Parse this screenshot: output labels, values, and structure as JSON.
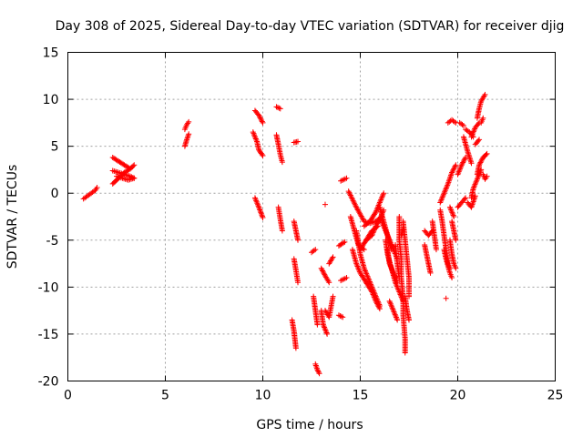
{
  "chart_data": {
    "type": "scatter",
    "title": "Day 308 of 2025, Sidereal Day-to-day VTEC variation (SDTVAR) for receiver djig",
    "xlabel": "GPS time / hours",
    "ylabel": "SDTVAR / TECUs",
    "xlim": [
      0,
      25
    ],
    "ylim": [
      -20,
      15
    ],
    "xticks": [
      "0",
      "5",
      "10",
      "15",
      "20",
      "25"
    ],
    "yticks": [
      "-20",
      "-15",
      "-10",
      "-5",
      "0",
      "5",
      "10",
      "15"
    ],
    "grid": true,
    "marker": "+",
    "color": "#ff0000",
    "tracks": [
      [
        [
          0.8,
          -0.6
        ],
        [
          1.0,
          -0.3
        ],
        [
          1.2,
          0.0
        ],
        [
          1.4,
          0.3
        ],
        [
          1.5,
          0.6
        ]
      ],
      [
        [
          2.3,
          1.0
        ],
        [
          2.6,
          1.6
        ],
        [
          2.9,
          2.2
        ],
        [
          3.2,
          2.6
        ],
        [
          3.4,
          3.0
        ]
      ],
      [
        [
          2.3,
          2.4
        ],
        [
          2.6,
          2.2
        ],
        [
          2.9,
          2.0
        ],
        [
          3.2,
          1.8
        ],
        [
          3.4,
          1.6
        ]
      ],
      [
        [
          2.3,
          3.8
        ],
        [
          2.6,
          3.4
        ],
        [
          2.9,
          3.0
        ],
        [
          3.2,
          2.6
        ]
      ],
      [
        [
          2.5,
          1.8
        ],
        [
          2.8,
          1.6
        ],
        [
          3.1,
          1.4
        ],
        [
          3.4,
          1.6
        ]
      ],
      [
        [
          6.0,
          5.0
        ],
        [
          6.1,
          5.7
        ],
        [
          6.2,
          6.3
        ]
      ],
      [
        [
          6.0,
          6.8
        ],
        [
          6.1,
          7.3
        ],
        [
          6.2,
          7.6
        ]
      ],
      [
        [
          9.6,
          8.8
        ],
        [
          9.8,
          8.3
        ],
        [
          10.0,
          7.5
        ]
      ],
      [
        [
          9.5,
          6.5
        ],
        [
          9.7,
          5.5
        ],
        [
          9.8,
          4.6
        ],
        [
          10.0,
          4.0
        ]
      ],
      [
        [
          9.6,
          -0.5
        ],
        [
          9.8,
          -1.5
        ],
        [
          10.0,
          -2.6
        ]
      ],
      [
        [
          10.7,
          9.2
        ],
        [
          10.9,
          9.0
        ]
      ],
      [
        [
          10.7,
          6.2
        ],
        [
          10.8,
          5.2
        ],
        [
          10.9,
          4.1
        ],
        [
          11.0,
          3.3
        ]
      ],
      [
        [
          10.8,
          -1.5
        ],
        [
          10.9,
          -2.8
        ],
        [
          11.0,
          -4.0
        ]
      ],
      [
        [
          11.6,
          5.4
        ],
        [
          11.8,
          5.5
        ]
      ],
      [
        [
          11.6,
          -3.0
        ],
        [
          11.7,
          -4.0
        ],
        [
          11.8,
          -5.0
        ]
      ],
      [
        [
          11.6,
          -7.0
        ],
        [
          11.7,
          -8.2
        ],
        [
          11.8,
          -9.5
        ]
      ],
      [
        [
          11.5,
          -13.5
        ],
        [
          11.6,
          -14.7
        ],
        [
          11.7,
          -16.5
        ]
      ],
      [
        [
          12.6,
          -11.0
        ],
        [
          12.7,
          -12.5
        ],
        [
          12.8,
          -14.0
        ]
      ],
      [
        [
          12.7,
          -18.2
        ],
        [
          12.8,
          -18.8
        ],
        [
          12.9,
          -19.2
        ]
      ],
      [
        [
          12.5,
          -6.3
        ],
        [
          12.7,
          -6.0
        ]
      ],
      [
        [
          13.0,
          -8.0
        ],
        [
          13.2,
          -8.8
        ],
        [
          13.4,
          -9.5
        ]
      ],
      [
        [
          13.0,
          -12.5
        ],
        [
          13.1,
          -14.0
        ],
        [
          13.3,
          -15.0
        ]
      ],
      [
        [
          13.2,
          -12.5
        ],
        [
          13.4,
          -13.2
        ],
        [
          13.6,
          -11.0
        ]
      ],
      [
        [
          13.4,
          -7.5
        ],
        [
          13.6,
          -6.8
        ]
      ],
      [
        [
          13.2,
          -1.2
        ]
      ],
      [
        [
          13.9,
          -13.0
        ],
        [
          14.1,
          -13.2
        ]
      ],
      [
        [
          14.0,
          1.3
        ],
        [
          14.3,
          1.6
        ]
      ],
      [
        [
          13.9,
          -5.6
        ],
        [
          14.2,
          -5.2
        ]
      ],
      [
        [
          14.0,
          -9.3
        ],
        [
          14.3,
          -9.0
        ]
      ],
      [
        [
          14.4,
          0.2
        ],
        [
          14.8,
          -1.5
        ],
        [
          15.2,
          -3.0
        ],
        [
          15.5,
          -3.2
        ],
        [
          15.8,
          -3.0
        ],
        [
          16.1,
          -2.5
        ]
      ],
      [
        [
          14.5,
          -2.5
        ],
        [
          14.7,
          -4.0
        ],
        [
          14.9,
          -5.5
        ],
        [
          15.2,
          -6.0
        ]
      ],
      [
        [
          14.6,
          -6.0
        ],
        [
          14.8,
          -7.5
        ],
        [
          15.0,
          -8.5
        ],
        [
          15.3,
          -9.5
        ],
        [
          15.6,
          -10.5
        ],
        [
          15.8,
          -11.5
        ],
        [
          16.0,
          -12.3
        ]
      ],
      [
        [
          14.8,
          -4.0
        ],
        [
          15.0,
          -6.5
        ],
        [
          15.2,
          -8.0
        ],
        [
          15.4,
          -9.0
        ],
        [
          15.6,
          -10.0
        ],
        [
          15.8,
          -11.0
        ],
        [
          16.0,
          -12.0
        ]
      ],
      [
        [
          15.2,
          -3.5
        ],
        [
          15.5,
          -3.0
        ],
        [
          15.8,
          -2.0
        ],
        [
          16.0,
          -1.0
        ],
        [
          16.2,
          0.0
        ]
      ],
      [
        [
          15.3,
          -5.0
        ],
        [
          15.6,
          -4.5
        ],
        [
          15.8,
          -3.5
        ],
        [
          16.0,
          -2.8
        ],
        [
          16.2,
          -1.8
        ]
      ],
      [
        [
          15.0,
          -6.0
        ],
        [
          15.3,
          -5.0
        ],
        [
          15.6,
          -4.0
        ],
        [
          15.9,
          -3.5
        ]
      ],
      [
        [
          16.0,
          -1.5
        ],
        [
          16.2,
          -3.0
        ],
        [
          16.4,
          -4.5
        ],
        [
          16.6,
          -6.0
        ]
      ],
      [
        [
          16.1,
          -3.0
        ],
        [
          16.3,
          -4.0
        ],
        [
          16.5,
          -5.0
        ],
        [
          16.7,
          -6.0
        ],
        [
          16.9,
          -7.0
        ]
      ],
      [
        [
          16.3,
          -5.0
        ],
        [
          16.4,
          -6.5
        ],
        [
          16.6,
          -8.0
        ],
        [
          16.8,
          -9.5
        ],
        [
          17.0,
          -10.5
        ],
        [
          17.2,
          -11.5
        ]
      ],
      [
        [
          16.4,
          -6.0
        ],
        [
          16.5,
          -7.5
        ],
        [
          16.7,
          -8.5
        ],
        [
          16.9,
          -9.5
        ]
      ],
      [
        [
          16.8,
          -5.5
        ],
        [
          16.9,
          -7.5
        ],
        [
          17.0,
          -9.0
        ]
      ],
      [
        [
          17.0,
          -2.5
        ],
        [
          17.0,
          -5.0
        ],
        [
          17.1,
          -7.0
        ],
        [
          17.1,
          -9.0
        ],
        [
          17.2,
          -11.0
        ],
        [
          17.2,
          -13.0
        ],
        [
          17.3,
          -15.5
        ],
        [
          17.3,
          -17.0
        ]
      ],
      [
        [
          17.2,
          -3.0
        ],
        [
          17.3,
          -5.0
        ],
        [
          17.4,
          -7.0
        ],
        [
          17.5,
          -9.0
        ],
        [
          17.5,
          -11.0
        ]
      ],
      [
        [
          16.5,
          -11.5
        ],
        [
          16.7,
          -12.5
        ],
        [
          16.9,
          -13.5
        ]
      ],
      [
        [
          17.3,
          -11.0
        ],
        [
          17.4,
          -12.5
        ],
        [
          17.5,
          -13.5
        ]
      ],
      [
        [
          17.1,
          -4.5
        ],
        [
          17.2,
          -3.8
        ]
      ],
      [
        [
          18.3,
          -5.5
        ],
        [
          18.4,
          -6.5
        ],
        [
          18.5,
          -7.5
        ],
        [
          18.6,
          -8.5
        ]
      ],
      [
        [
          18.7,
          -3.0
        ],
        [
          18.8,
          -4.5
        ],
        [
          18.9,
          -6.0
        ]
      ],
      [
        [
          18.3,
          -4.0
        ],
        [
          18.5,
          -4.5
        ],
        [
          18.7,
          -4.0
        ]
      ],
      [
        [
          19.1,
          -1.8
        ],
        [
          19.2,
          -3.0
        ],
        [
          19.3,
          -4.5
        ],
        [
          19.4,
          -6.0
        ],
        [
          19.5,
          -7.5
        ],
        [
          19.6,
          -8.0
        ]
      ],
      [
        [
          19.3,
          -6.0
        ],
        [
          19.4,
          -7.0
        ],
        [
          19.6,
          -8.5
        ],
        [
          19.7,
          -9.0
        ]
      ],
      [
        [
          19.6,
          -5.0
        ],
        [
          19.7,
          -6.5
        ],
        [
          19.8,
          -7.5
        ],
        [
          19.9,
          -8.0
        ]
      ],
      [
        [
          19.7,
          -3.0
        ],
        [
          19.8,
          -4.0
        ],
        [
          19.9,
          -5.0
        ]
      ],
      [
        [
          19.4,
          -11.2
        ]
      ],
      [
        [
          19.1,
          -1.0
        ],
        [
          19.3,
          0.0
        ],
        [
          19.5,
          1.0
        ],
        [
          19.7,
          2.2
        ],
        [
          19.9,
          3.0
        ]
      ],
      [
        [
          19.6,
          -1.5
        ],
        [
          19.8,
          -2.5
        ]
      ],
      [
        [
          19.5,
          7.5
        ],
        [
          19.7,
          7.8
        ],
        [
          19.9,
          7.5
        ]
      ],
      [
        [
          20.0,
          2.0
        ],
        [
          20.2,
          3.0
        ],
        [
          20.4,
          3.8
        ]
      ],
      [
        [
          20.1,
          7.5
        ],
        [
          20.3,
          7.2
        ]
      ],
      [
        [
          20.0,
          -1.5
        ],
        [
          20.2,
          -1.0
        ],
        [
          20.4,
          -0.5
        ]
      ],
      [
        [
          20.3,
          6.0
        ],
        [
          20.5,
          4.5
        ],
        [
          20.7,
          3.2
        ]
      ],
      [
        [
          20.4,
          6.8
        ],
        [
          20.6,
          6.5
        ],
        [
          20.8,
          6.0
        ]
      ],
      [
        [
          20.7,
          -0.5
        ],
        [
          20.8,
          0.5
        ],
        [
          21.0,
          1.5
        ],
        [
          21.2,
          2.5
        ]
      ],
      [
        [
          20.5,
          -1.0
        ],
        [
          20.7,
          -1.5
        ],
        [
          20.9,
          -0.3
        ]
      ],
      [
        [
          20.7,
          6.0
        ],
        [
          20.9,
          7.0
        ],
        [
          21.1,
          7.5
        ]
      ],
      [
        [
          21.0,
          2.0
        ],
        [
          21.1,
          3.0
        ],
        [
          21.3,
          3.8
        ],
        [
          21.5,
          4.2
        ]
      ],
      [
        [
          21.0,
          8.0
        ],
        [
          21.1,
          9.0
        ],
        [
          21.2,
          9.8
        ],
        [
          21.4,
          10.5
        ]
      ],
      [
        [
          21.2,
          7.5
        ],
        [
          21.3,
          8.0
        ]
      ],
      [
        [
          21.3,
          2.0
        ],
        [
          21.4,
          1.5
        ],
        [
          21.5,
          1.8
        ]
      ],
      [
        [
          20.9,
          5.2
        ],
        [
          21.1,
          5.7
        ]
      ]
    ]
  }
}
